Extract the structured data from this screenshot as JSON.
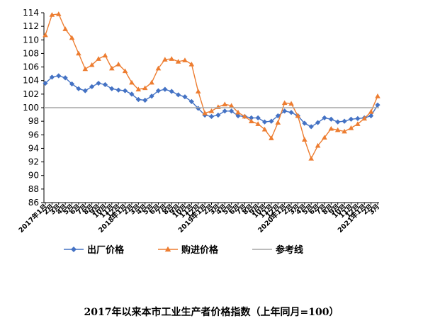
{
  "caption": "2017年以来本市工业生产者价格指数（上年同月=100）",
  "chart_data": {
    "type": "line",
    "title": "2017年以来本市工业生产者价格指数（上年同月=100）",
    "xlabel": "",
    "ylabel": "",
    "ylim": [
      86,
      114
    ],
    "yticks": [
      86,
      88,
      90,
      92,
      94,
      96,
      98,
      100,
      102,
      104,
      106,
      108,
      110,
      112,
      114
    ],
    "x": [
      "2017年1月",
      "2月",
      "3月",
      "4月",
      "5月",
      "6月",
      "7月",
      "8月",
      "9月",
      "10月",
      "11月",
      "12月",
      "2018年1月",
      "2月",
      "3月",
      "4月",
      "5月",
      "6月",
      "7月",
      "8月",
      "9月",
      "10月",
      "11月",
      "12月",
      "2019年1月",
      "2月",
      "3月",
      "4月",
      "5月",
      "6月",
      "7月",
      "8月",
      "9月",
      "10月",
      "11月",
      "12月",
      "2020年1月",
      "2月",
      "3月",
      "4月",
      "5月",
      "6月",
      "7月",
      "8月",
      "9月",
      "10月",
      "11月",
      "12月",
      "2021年1月",
      "2月",
      "3月"
    ],
    "grid": false,
    "legend_position": "bottom",
    "series": [
      {
        "name": "出厂价格",
        "color": "#4472C4",
        "marker": "diamond",
        "values": [
          103.6,
          104.5,
          104.7,
          104.4,
          103.5,
          102.8,
          102.5,
          103.1,
          103.6,
          103.4,
          102.8,
          102.6,
          102.5,
          102.0,
          101.2,
          101.1,
          101.7,
          102.5,
          102.7,
          102.4,
          101.9,
          101.6,
          100.9,
          99.9,
          98.9,
          98.7,
          98.9,
          99.5,
          99.5,
          98.8,
          98.7,
          98.5,
          98.5,
          97.9,
          98.0,
          98.8,
          99.5,
          99.3,
          98.8,
          97.7,
          97.2,
          97.8,
          98.5,
          98.3,
          97.9,
          98.0,
          98.3,
          98.4,
          98.5,
          98.8,
          100.4
        ]
      },
      {
        "name": "购进价格",
        "color": "#ED7D31",
        "marker": "triangle",
        "values": [
          110.7,
          113.7,
          113.8,
          111.6,
          110.3,
          108.0,
          105.7,
          106.3,
          107.2,
          107.7,
          105.8,
          106.4,
          105.4,
          103.7,
          102.7,
          102.9,
          103.7,
          105.8,
          107.1,
          107.2,
          106.8,
          107.0,
          106.4,
          102.4,
          99.2,
          99.5,
          100.1,
          100.5,
          100.3,
          99.3,
          98.7,
          98.0,
          97.6,
          96.8,
          95.5,
          97.8,
          100.7,
          100.6,
          98.8,
          95.3,
          92.5,
          94.4,
          95.6,
          96.9,
          96.7,
          96.5,
          97.0,
          97.6,
          98.4,
          99.4,
          101.7
        ]
      },
      {
        "name": "参考线",
        "color": "#A6A6A6",
        "marker": "none",
        "constant": 100
      }
    ]
  }
}
